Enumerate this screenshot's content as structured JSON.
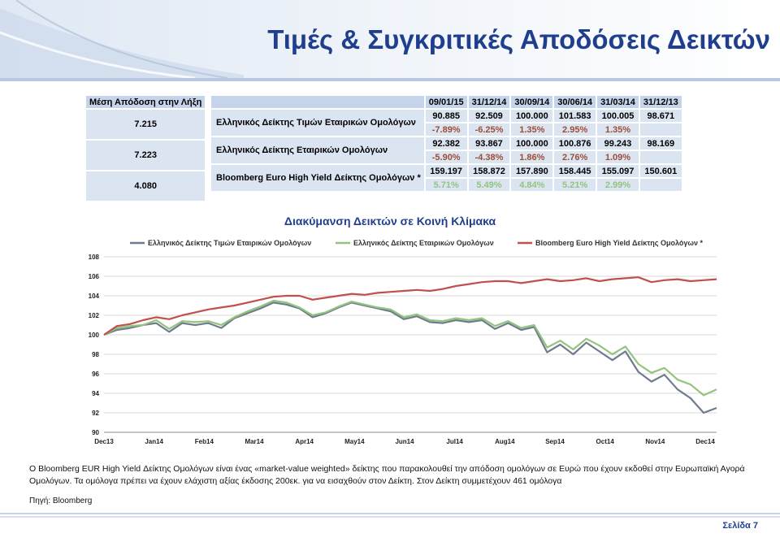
{
  "title": "Τιμές & Συγκριτικές Αποδόσεις Δεικτών",
  "table": {
    "left_header": "Μέση Απόδοση στην Λήξη",
    "dates": [
      "09/01/15",
      "31/12/14",
      "30/09/14",
      "30/06/14",
      "31/03/14",
      "31/12/13"
    ],
    "rows": [
      {
        "avg_yield": "7.215",
        "name": "Ελληνικός Δείκτης Τιμών Εταιρικών Ομολόγων",
        "values": [
          "90.885",
          "92.509",
          "100.000",
          "101.583",
          "100.005",
          "98.671"
        ],
        "returns": [
          "-7.89%",
          "-6.25%",
          "1.35%",
          "2.95%",
          "1.35%",
          ""
        ]
      },
      {
        "avg_yield": "7.223",
        "name": "Ελληνικός Δείκτης Εταιρικών Ομολόγων",
        "values": [
          "92.382",
          "93.867",
          "100.000",
          "100.876",
          "99.243",
          "98.169"
        ],
        "returns": [
          "-5.90%",
          "-4.38%",
          "1.86%",
          "2.76%",
          "1.09%",
          ""
        ]
      },
      {
        "avg_yield": "4.080",
        "name": "Bloomberg Euro High Yield Δείκτης Ομολόγων *",
        "values": [
          "159.197",
          "158.872",
          "157.890",
          "158.445",
          "155.097",
          "150.601"
        ],
        "returns": [
          "5.71%",
          "5.49%",
          "4.84%",
          "5.21%",
          "2.99%",
          ""
        ]
      }
    ]
  },
  "chart_data": {
    "type": "line",
    "title": "Διακύμανση Δεικτών σε Κοινή Κλίμακα",
    "ylim": [
      90,
      108
    ],
    "yticks": [
      "90",
      "92",
      "94",
      "96",
      "98",
      "100",
      "102",
      "104",
      "106",
      "108"
    ],
    "x_labels": [
      "Dec13",
      "Jan14",
      "Feb14",
      "Mar14",
      "Apr14",
      "May14",
      "Jun14",
      "Jul14",
      "Aug14",
      "Sep14",
      "Oct14",
      "Nov14",
      "Dec14"
    ],
    "legend_position": "top",
    "grid": true,
    "series": [
      {
        "name": "Ελληνικός Δείκτης Τιμών Εταιρικών Ομολόγων",
        "color": "#6e7b8f",
        "values": [
          100,
          100.5,
          100.7,
          101.0,
          101.2,
          100.3,
          101.2,
          101.0,
          101.2,
          100.7,
          101.7,
          102.2,
          102.7,
          103.3,
          103.1,
          102.7,
          101.8,
          102.2,
          102.8,
          103.3,
          103.0,
          102.7,
          102.4,
          101.6,
          101.9,
          101.3,
          101.2,
          101.5,
          101.3,
          101.5,
          100.6,
          101.2,
          100.5,
          100.8,
          98.2,
          99.0,
          98.0,
          99.2,
          98.3,
          97.4,
          98.3,
          96.2,
          95.2,
          95.9,
          94.4,
          93.5,
          92.0,
          92.5
        ]
      },
      {
        "name": "Ελληνικός Δείκτης Εταιρικών Ομολόγων",
        "color": "#93c47d",
        "values": [
          100,
          100.7,
          100.9,
          101.0,
          101.5,
          100.6,
          101.4,
          101.3,
          101.4,
          101.0,
          101.8,
          102.4,
          102.9,
          103.5,
          103.3,
          102.8,
          102.0,
          102.3,
          102.9,
          103.4,
          103.1,
          102.8,
          102.6,
          101.8,
          102.1,
          101.5,
          101.4,
          101.7,
          101.5,
          101.7,
          100.9,
          101.4,
          100.7,
          101.0,
          98.7,
          99.4,
          98.5,
          99.6,
          98.9,
          98.0,
          98.8,
          97.0,
          96.1,
          96.6,
          95.4,
          94.9,
          93.8,
          94.4
        ]
      },
      {
        "name": "Bloomberg Euro High Yield Δείκτης Ομολόγων *",
        "color": "#c0504d",
        "values": [
          100,
          100.9,
          101.1,
          101.5,
          101.8,
          101.6,
          102.0,
          102.3,
          102.6,
          102.8,
          103.0,
          103.3,
          103.6,
          103.9,
          104.0,
          104.0,
          103.6,
          103.8,
          104.0,
          104.2,
          104.1,
          104.3,
          104.4,
          104.5,
          104.6,
          104.5,
          104.7,
          105.0,
          105.2,
          105.4,
          105.5,
          105.5,
          105.3,
          105.5,
          105.7,
          105.5,
          105.6,
          105.8,
          105.5,
          105.7,
          105.8,
          105.9,
          105.4,
          105.6,
          105.7,
          105.5,
          105.6,
          105.7
        ]
      }
    ]
  },
  "description": "Ο Bloomberg EUR High Yield Δείκτης Ομολόγων είναι ένας «market-value weighted» δείκτης που παρακολουθεί την απόδοση ομολόγων σε Ευρώ που έχουν εκδοθεί στην Ευρωπαϊκή Αγορά Ομολόγων. Τα ομόλογα πρέπει να έχουν ελάχιστη αξίας έκδοσης 200εκ. για να εισαχθούν στον Δείκτη. Στον Δείκτη συμμετέχουν 461 ομόλογα",
  "source": "Πηγή: Bloomberg",
  "page_number": "Σελίδα 7",
  "colors": {
    "title": "#1f3f8e",
    "header_fill": "#c5d4ea",
    "cell_fill": "#dbe5f1",
    "negative_return": "#9f4c34"
  }
}
